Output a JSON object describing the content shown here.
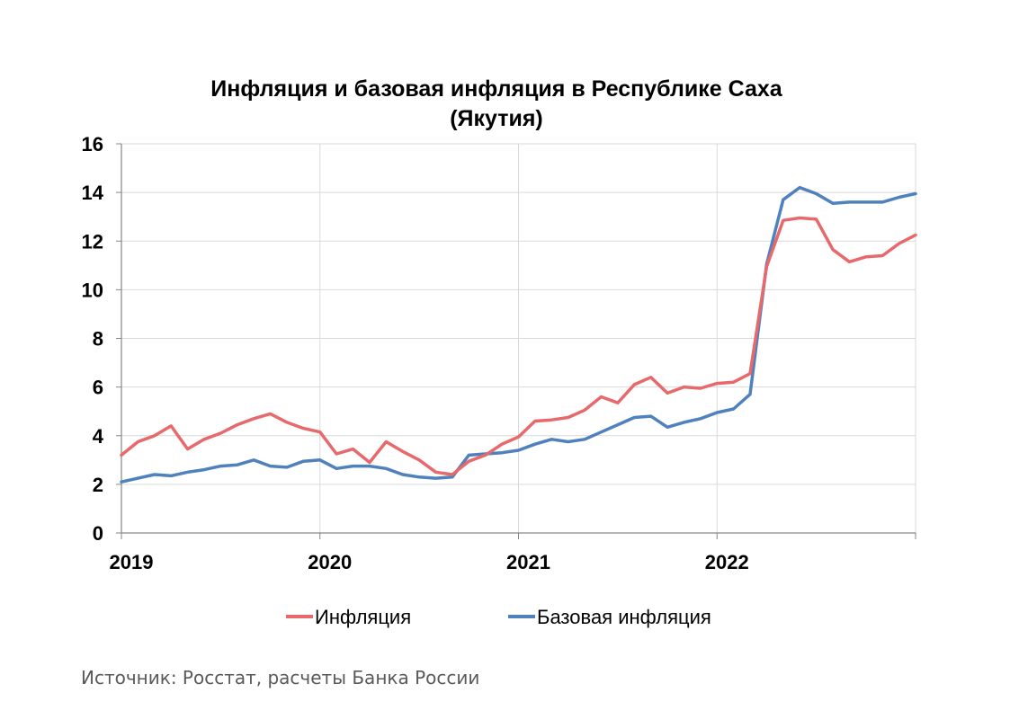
{
  "chart_data": {
    "type": "line",
    "title_line1": "Инфляция и базовая инфляция в Республике Саха",
    "title_line2": "(Якутия)",
    "xlabel": "",
    "ylabel": "",
    "ylim": [
      0,
      16
    ],
    "yticks": [
      "0",
      "2",
      "4",
      "6",
      "8",
      "10",
      "12",
      "14",
      "16"
    ],
    "xticks": [
      "2019",
      "2020",
      "2021",
      "2022"
    ],
    "x_start": "2019-01",
    "x_end": "2022-12",
    "grid": true,
    "legend_position": "bottom",
    "series": [
      {
        "name": "Инфляция",
        "color": "#e8696b",
        "values": [
          3.2,
          3.75,
          4.0,
          4.4,
          3.45,
          3.85,
          4.1,
          4.45,
          4.7,
          4.9,
          4.55,
          4.3,
          4.15,
          3.25,
          3.45,
          2.9,
          3.75,
          3.35,
          3.0,
          2.5,
          2.4,
          2.95,
          3.2,
          3.65,
          3.95,
          4.6,
          4.65,
          4.75,
          5.05,
          5.6,
          5.35,
          6.1,
          6.4,
          5.75,
          6.0,
          5.95,
          6.15,
          6.2,
          6.55,
          10.95,
          12.85,
          12.95,
          12.9,
          11.65,
          11.15,
          11.35,
          11.4,
          11.9,
          12.25
        ]
      },
      {
        "name": "Базовая инфляция",
        "color": "#4f81bd",
        "values": [
          2.1,
          2.25,
          2.4,
          2.35,
          2.5,
          2.6,
          2.75,
          2.8,
          3.0,
          2.75,
          2.7,
          2.95,
          3.0,
          2.65,
          2.75,
          2.75,
          2.65,
          2.4,
          2.3,
          2.25,
          2.3,
          3.2,
          3.25,
          3.3,
          3.4,
          3.65,
          3.85,
          3.75,
          3.85,
          4.15,
          4.45,
          4.75,
          4.8,
          4.35,
          4.55,
          4.7,
          4.95,
          5.1,
          5.7,
          11.05,
          13.7,
          14.2,
          13.95,
          13.55,
          13.6,
          13.6,
          13.6,
          13.8,
          13.95
        ]
      }
    ]
  },
  "source_text": "Источник: Росстат, расчеты Банка России"
}
